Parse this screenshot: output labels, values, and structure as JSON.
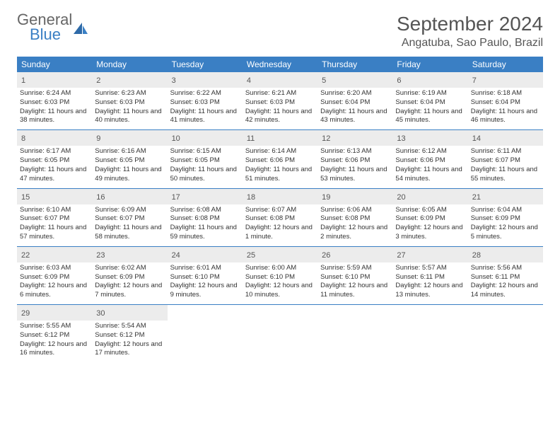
{
  "logo": {
    "general": "General",
    "blue": "Blue"
  },
  "title": "September 2024",
  "location": "Angatuba, Sao Paulo, Brazil",
  "header_bg": "#3a7fc4",
  "daynum_bg": "#ececec",
  "divider_color": "#3a7fc4",
  "day_headers": [
    "Sunday",
    "Monday",
    "Tuesday",
    "Wednesday",
    "Thursday",
    "Friday",
    "Saturday"
  ],
  "weeks": [
    [
      {
        "day": "1",
        "sunrise": "Sunrise: 6:24 AM",
        "sunset": "Sunset: 6:03 PM",
        "daylight": "Daylight: 11 hours and 38 minutes."
      },
      {
        "day": "2",
        "sunrise": "Sunrise: 6:23 AM",
        "sunset": "Sunset: 6:03 PM",
        "daylight": "Daylight: 11 hours and 40 minutes."
      },
      {
        "day": "3",
        "sunrise": "Sunrise: 6:22 AM",
        "sunset": "Sunset: 6:03 PM",
        "daylight": "Daylight: 11 hours and 41 minutes."
      },
      {
        "day": "4",
        "sunrise": "Sunrise: 6:21 AM",
        "sunset": "Sunset: 6:03 PM",
        "daylight": "Daylight: 11 hours and 42 minutes."
      },
      {
        "day": "5",
        "sunrise": "Sunrise: 6:20 AM",
        "sunset": "Sunset: 6:04 PM",
        "daylight": "Daylight: 11 hours and 43 minutes."
      },
      {
        "day": "6",
        "sunrise": "Sunrise: 6:19 AM",
        "sunset": "Sunset: 6:04 PM",
        "daylight": "Daylight: 11 hours and 45 minutes."
      },
      {
        "day": "7",
        "sunrise": "Sunrise: 6:18 AM",
        "sunset": "Sunset: 6:04 PM",
        "daylight": "Daylight: 11 hours and 46 minutes."
      }
    ],
    [
      {
        "day": "8",
        "sunrise": "Sunrise: 6:17 AM",
        "sunset": "Sunset: 6:05 PM",
        "daylight": "Daylight: 11 hours and 47 minutes."
      },
      {
        "day": "9",
        "sunrise": "Sunrise: 6:16 AM",
        "sunset": "Sunset: 6:05 PM",
        "daylight": "Daylight: 11 hours and 49 minutes."
      },
      {
        "day": "10",
        "sunrise": "Sunrise: 6:15 AM",
        "sunset": "Sunset: 6:05 PM",
        "daylight": "Daylight: 11 hours and 50 minutes."
      },
      {
        "day": "11",
        "sunrise": "Sunrise: 6:14 AM",
        "sunset": "Sunset: 6:06 PM",
        "daylight": "Daylight: 11 hours and 51 minutes."
      },
      {
        "day": "12",
        "sunrise": "Sunrise: 6:13 AM",
        "sunset": "Sunset: 6:06 PM",
        "daylight": "Daylight: 11 hours and 53 minutes."
      },
      {
        "day": "13",
        "sunrise": "Sunrise: 6:12 AM",
        "sunset": "Sunset: 6:06 PM",
        "daylight": "Daylight: 11 hours and 54 minutes."
      },
      {
        "day": "14",
        "sunrise": "Sunrise: 6:11 AM",
        "sunset": "Sunset: 6:07 PM",
        "daylight": "Daylight: 11 hours and 55 minutes."
      }
    ],
    [
      {
        "day": "15",
        "sunrise": "Sunrise: 6:10 AM",
        "sunset": "Sunset: 6:07 PM",
        "daylight": "Daylight: 11 hours and 57 minutes."
      },
      {
        "day": "16",
        "sunrise": "Sunrise: 6:09 AM",
        "sunset": "Sunset: 6:07 PM",
        "daylight": "Daylight: 11 hours and 58 minutes."
      },
      {
        "day": "17",
        "sunrise": "Sunrise: 6:08 AM",
        "sunset": "Sunset: 6:08 PM",
        "daylight": "Daylight: 11 hours and 59 minutes."
      },
      {
        "day": "18",
        "sunrise": "Sunrise: 6:07 AM",
        "sunset": "Sunset: 6:08 PM",
        "daylight": "Daylight: 12 hours and 1 minute."
      },
      {
        "day": "19",
        "sunrise": "Sunrise: 6:06 AM",
        "sunset": "Sunset: 6:08 PM",
        "daylight": "Daylight: 12 hours and 2 minutes."
      },
      {
        "day": "20",
        "sunrise": "Sunrise: 6:05 AM",
        "sunset": "Sunset: 6:09 PM",
        "daylight": "Daylight: 12 hours and 3 minutes."
      },
      {
        "day": "21",
        "sunrise": "Sunrise: 6:04 AM",
        "sunset": "Sunset: 6:09 PM",
        "daylight": "Daylight: 12 hours and 5 minutes."
      }
    ],
    [
      {
        "day": "22",
        "sunrise": "Sunrise: 6:03 AM",
        "sunset": "Sunset: 6:09 PM",
        "daylight": "Daylight: 12 hours and 6 minutes."
      },
      {
        "day": "23",
        "sunrise": "Sunrise: 6:02 AM",
        "sunset": "Sunset: 6:09 PM",
        "daylight": "Daylight: 12 hours and 7 minutes."
      },
      {
        "day": "24",
        "sunrise": "Sunrise: 6:01 AM",
        "sunset": "Sunset: 6:10 PM",
        "daylight": "Daylight: 12 hours and 9 minutes."
      },
      {
        "day": "25",
        "sunrise": "Sunrise: 6:00 AM",
        "sunset": "Sunset: 6:10 PM",
        "daylight": "Daylight: 12 hours and 10 minutes."
      },
      {
        "day": "26",
        "sunrise": "Sunrise: 5:59 AM",
        "sunset": "Sunset: 6:10 PM",
        "daylight": "Daylight: 12 hours and 11 minutes."
      },
      {
        "day": "27",
        "sunrise": "Sunrise: 5:57 AM",
        "sunset": "Sunset: 6:11 PM",
        "daylight": "Daylight: 12 hours and 13 minutes."
      },
      {
        "day": "28",
        "sunrise": "Sunrise: 5:56 AM",
        "sunset": "Sunset: 6:11 PM",
        "daylight": "Daylight: 12 hours and 14 minutes."
      }
    ],
    [
      {
        "day": "29",
        "sunrise": "Sunrise: 5:55 AM",
        "sunset": "Sunset: 6:12 PM",
        "daylight": "Daylight: 12 hours and 16 minutes."
      },
      {
        "day": "30",
        "sunrise": "Sunrise: 5:54 AM",
        "sunset": "Sunset: 6:12 PM",
        "daylight": "Daylight: 12 hours and 17 minutes."
      },
      null,
      null,
      null,
      null,
      null
    ]
  ]
}
